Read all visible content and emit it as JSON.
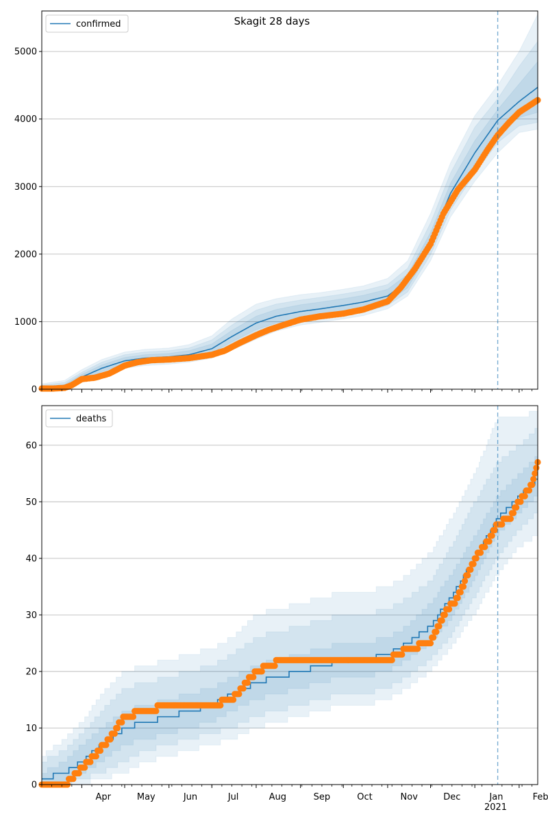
{
  "figure": {
    "title": "Skagit 28 days"
  },
  "colors": {
    "model_line": "#1f77b4",
    "band": "#1f77b4",
    "observed": "#ff7f0e",
    "grid": "#b0b0b0",
    "forecast_marker": "#1f77b4"
  },
  "chart_data": [
    {
      "type": "line",
      "panel": "top",
      "title": "Skagit 28 days",
      "xlabel": "",
      "ylabel": "",
      "legend": {
        "label": "confirmed",
        "placement": "top-left"
      },
      "x_ticks": [
        "Apr",
        "May",
        "Jun",
        "Jul",
        "Aug",
        "Sep",
        "Oct",
        "Nov",
        "Dec",
        "Jan",
        "Feb"
      ],
      "x_extra_label": "2021",
      "x_range": [
        "2020-03-04",
        "2021-02-14"
      ],
      "forecast_start": "2021-01-17",
      "ylim": [
        0,
        5600
      ],
      "y_ticks": [
        0,
        1000,
        2000,
        3000,
        4000,
        5000
      ],
      "grid": "horizontal",
      "model": {
        "name": "confirmed",
        "x": [
          "2020-03-04",
          "2020-03-20",
          "2020-04-01",
          "2020-04-15",
          "2020-05-01",
          "2020-05-15",
          "2020-06-01",
          "2020-06-15",
          "2020-07-01",
          "2020-07-15",
          "2020-08-01",
          "2020-08-15",
          "2020-09-01",
          "2020-09-15",
          "2020-10-01",
          "2020-10-15",
          "2020-11-01",
          "2020-11-15",
          "2020-12-01",
          "2020-12-15",
          "2021-01-01",
          "2021-01-17",
          "2021-02-01",
          "2021-02-14"
        ],
        "values": [
          20,
          40,
          180,
          310,
          420,
          460,
          480,
          510,
          600,
          780,
          980,
          1080,
          1150,
          1190,
          1240,
          1290,
          1380,
          1600,
          2200,
          2900,
          3500,
          3980,
          4260,
          4470
        ],
        "bands": [
          {
            "lower": [
              0,
              0,
              140,
              260,
              370,
              410,
              430,
              460,
              540,
              700,
              880,
              980,
              1050,
              1090,
              1140,
              1190,
              1290,
              1500,
              2080,
              2760,
              3330,
              3820,
              4020,
              4100
            ],
            "upper": [
              40,
              70,
              220,
              360,
              470,
              510,
              530,
              570,
              670,
              870,
              1080,
              1180,
              1250,
              1290,
              1340,
              1390,
              1480,
              1700,
              2320,
              3050,
              3680,
              4140,
              4520,
              4850
            ]
          },
          {
            "lower": [
              0,
              0,
              120,
              230,
              340,
              380,
              400,
              430,
              500,
              640,
              810,
              920,
              1000,
              1040,
              1090,
              1140,
              1240,
              1440,
              1990,
              2650,
              3200,
              3650,
              3900,
              3950
            ],
            "upper": [
              60,
              100,
              250,
              400,
              510,
              550,
              570,
              610,
              730,
              950,
              1170,
              1260,
              1320,
              1360,
              1410,
              1460,
              1550,
              1790,
              2460,
              3200,
              3880,
              4300,
              4780,
              5150
            ]
          },
          {
            "lower": [
              0,
              0,
              100,
              200,
              310,
              350,
              370,
              400,
              460,
              580,
              740,
              860,
              950,
              990,
              1040,
              1090,
              1190,
              1380,
              1900,
              2550,
              3080,
              3500,
              3800,
              3850
            ],
            "upper": [
              80,
              130,
              290,
              440,
              550,
              590,
              610,
              660,
              790,
              1040,
              1260,
              1340,
              1400,
              1430,
              1480,
              1530,
              1640,
              1900,
              2600,
              3350,
              4050,
              4500,
              5000,
              5550
            ]
          }
        ]
      },
      "observed": {
        "name": "observed",
        "x": [
          "2020-03-04",
          "2020-03-12",
          "2020-03-20",
          "2020-03-25",
          "2020-04-01",
          "2020-04-10",
          "2020-04-20",
          "2020-05-01",
          "2020-05-10",
          "2020-05-20",
          "2020-06-01",
          "2020-06-15",
          "2020-07-01",
          "2020-07-10",
          "2020-07-20",
          "2020-08-01",
          "2020-08-10",
          "2020-08-20",
          "2020-09-01",
          "2020-09-15",
          "2020-10-01",
          "2020-10-15",
          "2020-11-01",
          "2020-11-10",
          "2020-11-20",
          "2020-12-01",
          "2020-12-10",
          "2020-12-20",
          "2021-01-01",
          "2021-01-10",
          "2021-01-17",
          "2021-01-25",
          "2021-02-01",
          "2021-02-14"
        ],
        "values": [
          10,
          10,
          20,
          60,
          150,
          170,
          230,
          350,
          400,
          430,
          440,
          460,
          510,
          570,
          680,
          800,
          880,
          950,
          1030,
          1080,
          1120,
          1180,
          1300,
          1500,
          1780,
          2150,
          2600,
          2950,
          3250,
          3550,
          3760,
          3950,
          4100,
          4280
        ]
      }
    },
    {
      "type": "line",
      "panel": "bottom",
      "title": "",
      "xlabel": "",
      "ylabel": "",
      "legend": {
        "label": "deaths",
        "placement": "top-left"
      },
      "x_ticks": [
        "Apr",
        "May",
        "Jun",
        "Jul",
        "Aug",
        "Sep",
        "Oct",
        "Nov",
        "Dec",
        "Jan",
        "Feb"
      ],
      "x_extra_label": "2021",
      "x_range": [
        "2020-03-04",
        "2021-02-14"
      ],
      "forecast_start": "2021-01-17",
      "ylim": [
        0,
        67
      ],
      "y_ticks": [
        0,
        10,
        20,
        30,
        40,
        50,
        60
      ],
      "grid": "horizontal",
      "model": {
        "name": "deaths",
        "x": [
          "2020-03-04",
          "2020-03-20",
          "2020-04-01",
          "2020-04-15",
          "2020-05-01",
          "2020-05-15",
          "2020-06-01",
          "2020-06-15",
          "2020-07-01",
          "2020-07-15",
          "2020-08-01",
          "2020-08-15",
          "2020-09-01",
          "2020-09-15",
          "2020-10-01",
          "2020-10-15",
          "2020-11-01",
          "2020-11-15",
          "2020-12-01",
          "2020-12-15",
          "2021-01-01",
          "2021-01-17",
          "2021-02-01",
          "2021-02-14"
        ],
        "values": [
          1,
          2,
          4,
          7,
          10,
          11,
          12,
          13,
          14,
          16,
          18,
          19,
          20,
          21,
          22,
          22,
          23,
          25,
          28,
          33,
          40,
          47,
          51,
          54
        ],
        "bands": [
          {
            "lower": [
              0,
              0,
              2,
              4,
              7,
              8,
              9,
              10,
              11,
              13,
              15,
              16,
              17,
              18,
              19,
              19,
              20,
              22,
              25,
              29,
              36,
              44,
              48,
              51
            ],
            "upper": [
              2,
              4,
              7,
              10,
              13,
              14,
              15,
              16,
              17,
              19,
              21,
              22,
              23,
              24,
              25,
              25,
              26,
              28,
              32,
              37,
              44,
              51,
              55,
              58
            ]
          },
          {
            "lower": [
              0,
              0,
              1,
              2,
              4,
              6,
              7,
              8,
              9,
              10,
              12,
              13,
              14,
              15,
              16,
              16,
              17,
              19,
              22,
              26,
              33,
              40,
              45,
              48
            ],
            "upper": [
              4,
              6,
              9,
              13,
              17,
              18,
              19,
              20,
              21,
              23,
              26,
              27,
              28,
              29,
              30,
              30,
              31,
              33,
              36,
              42,
              50,
              57,
              60,
              63
            ]
          },
          {
            "lower": [
              0,
              0,
              0,
              1,
              2,
              4,
              5,
              6,
              7,
              8,
              10,
              11,
              12,
              13,
              14,
              14,
              15,
              17,
              20,
              24,
              30,
              37,
              42,
              44
            ],
            "upper": [
              5,
              8,
              11,
              16,
              20,
              21,
              22,
              23,
              24,
              26,
              30,
              31,
              32,
              33,
              34,
              34,
              35,
              37,
              41,
              47,
              55,
              65,
              65,
              66
            ]
          }
        ]
      },
      "observed": {
        "name": "observed",
        "x": [
          "2020-03-04",
          "2020-03-20",
          "2020-03-25",
          "2020-04-01",
          "2020-04-10",
          "2020-04-20",
          "2020-05-01",
          "2020-05-15",
          "2020-06-01",
          "2020-06-15",
          "2020-07-01",
          "2020-07-15",
          "2020-08-01",
          "2020-08-10",
          "2020-08-20",
          "2020-09-01",
          "2020-09-15",
          "2020-10-01",
          "2020-10-15",
          "2020-11-01",
          "2020-11-15",
          "2020-12-01",
          "2020-12-10",
          "2020-12-20",
          "2021-01-01",
          "2021-01-10",
          "2021-01-17",
          "2021-01-25",
          "2021-02-01",
          "2021-02-10",
          "2021-02-14"
        ],
        "values": [
          0,
          0,
          1,
          3,
          5,
          8,
          12,
          13,
          14,
          14,
          14,
          15,
          20,
          21,
          22,
          22,
          22,
          22,
          22,
          22,
          24,
          25,
          30,
          33,
          40,
          43,
          46,
          47,
          50,
          53,
          57
        ]
      }
    }
  ]
}
